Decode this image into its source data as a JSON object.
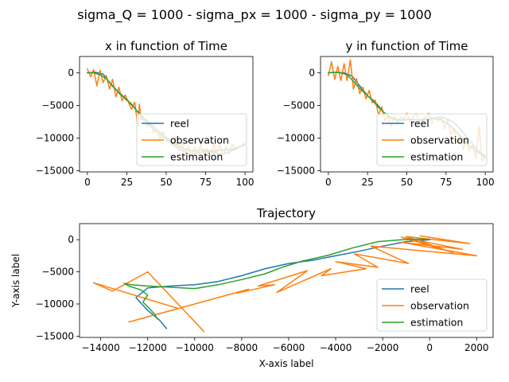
{
  "figure": {
    "suptitle": "sigma_Q = 1000 - sigma_px = 1000 - sigma_py = 1000"
  },
  "colors": {
    "reel": "#1f77b4",
    "observation": "#ff7f0e",
    "estimation": "#2ca02c"
  },
  "chart_data": [
    {
      "type": "line",
      "title": "x in function of Time",
      "xlabel": "",
      "ylabel": "",
      "xlim": [
        -5,
        105
      ],
      "ylim": [
        -15200,
        2500
      ],
      "xticks": [
        0,
        25,
        50,
        75,
        100
      ],
      "xtick_labels": [
        "0",
        "25",
        "50",
        "75",
        "100"
      ],
      "yticks": [
        0,
        -5000,
        -10000,
        -15000
      ],
      "ytick_labels": [
        "0",
        "−5000",
        "−10000",
        "−15000"
      ],
      "grid": false,
      "legend": "lower-right",
      "series": [
        {
          "name": "reel",
          "x": [
            0,
            5,
            10,
            15,
            20,
            25,
            30,
            35,
            40,
            45,
            50,
            55,
            60,
            65,
            70,
            75,
            80,
            85,
            90,
            95,
            100
          ],
          "values": [
            0,
            100,
            -200,
            -1800,
            -3100,
            -4200,
            -5400,
            -7000,
            -8200,
            -9300,
            -10200,
            -11200,
            -11900,
            -12500,
            -12300,
            -12000,
            -12200,
            -12500,
            -12100,
            -11600,
            -11000
          ]
        },
        {
          "name": "observation",
          "x": [
            0,
            2,
            4,
            6,
            8,
            10,
            12,
            14,
            16,
            18,
            20,
            22,
            24,
            26,
            28,
            30,
            32,
            33,
            34,
            36,
            38,
            40,
            42,
            44,
            46,
            48,
            50,
            52,
            54,
            56,
            58,
            60,
            62,
            64,
            66,
            68,
            70,
            72,
            74,
            76,
            78,
            80,
            82,
            84,
            86,
            88,
            90,
            92,
            94,
            96,
            98,
            100
          ],
          "values": [
            600,
            -600,
            500,
            -2000,
            400,
            -1500,
            -400,
            -2500,
            -1000,
            -3700,
            -2200,
            -4300,
            -3400,
            -4500,
            -5600,
            -4500,
            -8200,
            -4800,
            -7200,
            -7000,
            -8300,
            -7700,
            -9200,
            -8800,
            -10200,
            -9000,
            -10500,
            -10000,
            -11200,
            -9800,
            -12000,
            -10700,
            -12600,
            -11200,
            -12800,
            -11400,
            -12300,
            -11000,
            -12600,
            -11600,
            -12800,
            -10900,
            -12300,
            -11100,
            -12700,
            -11300,
            -12400,
            -10900,
            -11800,
            -11300,
            -11200,
            -10700
          ]
        },
        {
          "name": "estimation",
          "x": [
            0,
            4,
            8,
            12,
            16,
            20,
            24,
            28,
            32,
            36,
            40,
            44,
            48,
            52,
            56,
            60,
            64,
            68,
            72,
            76,
            80,
            84,
            88,
            92,
            96,
            100
          ],
          "values": [
            0,
            0,
            -300,
            -900,
            -2000,
            -3000,
            -3900,
            -4800,
            -6000,
            -7000,
            -7800,
            -8700,
            -9500,
            -10300,
            -11000,
            -11500,
            -11900,
            -12000,
            -11800,
            -11900,
            -12000,
            -11900,
            -11800,
            -11700,
            -11400,
            -11000
          ]
        }
      ]
    },
    {
      "type": "line",
      "title": "y in function of Time",
      "xlabel": "",
      "ylabel": "",
      "xlim": [
        -5,
        105
      ],
      "ylim": [
        -15200,
        2500
      ],
      "xticks": [
        0,
        25,
        50,
        75,
        100
      ],
      "xtick_labels": [
        "0",
        "25",
        "50",
        "75",
        "100"
      ],
      "yticks": [
        0,
        -5000,
        -10000,
        -15000
      ],
      "ytick_labels": [
        "0",
        "−5000",
        "−10000",
        "−15000"
      ],
      "grid": false,
      "legend": "lower-right",
      "series": [
        {
          "name": "reel",
          "x": [
            0,
            5,
            10,
            15,
            20,
            25,
            30,
            35,
            40,
            45,
            50,
            55,
            60,
            65,
            70,
            75,
            80,
            85,
            90,
            95,
            100
          ],
          "values": [
            0,
            100,
            0,
            -500,
            -2000,
            -3500,
            -4500,
            -6000,
            -7000,
            -7300,
            -7200,
            -7200,
            -7300,
            -7100,
            -6800,
            -7000,
            -7600,
            -8900,
            -10400,
            -11800,
            -12800
          ]
        },
        {
          "name": "observation",
          "x": [
            0,
            2,
            4,
            6,
            8,
            10,
            12,
            14,
            16,
            18,
            20,
            22,
            24,
            26,
            28,
            30,
            32,
            34,
            36,
            38,
            40,
            42,
            44,
            46,
            48,
            50,
            52,
            54,
            56,
            58,
            60,
            62,
            64,
            66,
            68,
            70,
            72,
            74,
            76,
            78,
            80,
            82,
            84,
            86,
            88,
            90,
            92,
            94,
            96,
            98,
            100
          ],
          "values": [
            -400,
            1700,
            -1000,
            1000,
            -1200,
            1400,
            -1200,
            2000,
            -2500,
            -900,
            -3200,
            -2200,
            -4000,
            -2700,
            -4600,
            -4200,
            -6500,
            -5200,
            -7300,
            -6600,
            -8200,
            -6600,
            -7700,
            -6700,
            -7200,
            -6200,
            -7600,
            -6700,
            -6300,
            -7300,
            -7100,
            -6800,
            -6200,
            -7800,
            -6900,
            -7400,
            -6700,
            -8600,
            -7100,
            -9500,
            -8500,
            -10800,
            -9600,
            -11700,
            -10400,
            -12000,
            -11000,
            -13100,
            -8200,
            -13500,
            -12700
          ]
        },
        {
          "name": "estimation",
          "x": [
            0,
            4,
            8,
            12,
            16,
            20,
            24,
            28,
            32,
            36,
            40,
            44,
            48,
            52,
            56,
            60,
            64,
            68,
            72,
            76,
            80,
            84,
            88,
            92,
            96,
            100
          ],
          "values": [
            0,
            100,
            0,
            -300,
            -1300,
            -2400,
            -3300,
            -4200,
            -5300,
            -6200,
            -6900,
            -7200,
            -7200,
            -7100,
            -7200,
            -7200,
            -7000,
            -7000,
            -7200,
            -7800,
            -8600,
            -9700,
            -10800,
            -11600,
            -12300,
            -13000
          ]
        }
      ]
    },
    {
      "type": "line",
      "title": "Trajectory",
      "xlabel": "X-axis label",
      "ylabel": "Y-axis label",
      "xlim": [
        -14900,
        2700
      ],
      "ylim": [
        -15200,
        2500
      ],
      "xticks": [
        -14000,
        -12000,
        -10000,
        -8000,
        -6000,
        -4000,
        -2000,
        0,
        2000
      ],
      "xtick_labels": [
        "−14000",
        "−12000",
        "−10000",
        "−8000",
        "−6000",
        "−4000",
        "−2000",
        "0",
        "2000"
      ],
      "yticks": [
        0,
        -5000,
        -10000,
        -15000
      ],
      "ytick_labels": [
        "0",
        "−5000",
        "−10000",
        "−15000"
      ],
      "grid": false,
      "legend": "lower-right",
      "series": [
        {
          "name": "reel",
          "x": [
            0,
            -1000,
            -2000,
            -3000,
            -4000,
            -5000,
            -6000,
            -7000,
            -8000,
            -9000,
            -10000,
            -11000,
            -12000,
            -12500,
            -12000,
            -11500,
            -11200
          ],
          "values": [
            0,
            -300,
            -1000,
            -1800,
            -2500,
            -3200,
            -3700,
            -4500,
            -5600,
            -6500,
            -7000,
            -7200,
            -7500,
            -9000,
            -11000,
            -12500,
            -13800
          ]
        },
        {
          "name": "observation",
          "x": [
            -400,
            1700,
            -1000,
            1000,
            -1200,
            1400,
            -1200,
            2000,
            -2500,
            -900,
            -3200,
            -2200,
            -4000,
            -2700,
            -4600,
            -4200,
            -6500,
            -5200,
            -7300,
            -6600,
            -8200,
            -7700,
            -9200,
            -8800,
            -10200,
            -9000,
            -10500,
            -10000,
            -11200,
            -9800,
            -12000,
            -10700,
            -12600,
            -11200,
            -12800,
            -11400,
            -12300,
            -11000,
            -12600,
            -11600,
            -12800,
            -10900,
            -12300,
            -11100,
            -12700,
            -11300,
            -12400,
            -10900,
            -11800,
            -11300,
            -11200,
            -10700,
            -14300,
            -13500,
            -12000,
            -9600
          ],
          "values": [
            600,
            -600,
            500,
            -2000,
            400,
            -1500,
            -400,
            -2500,
            -1000,
            -3700,
            -2200,
            -4300,
            -3400,
            -4500,
            -5600,
            -4500,
            -8200,
            -4800,
            -7200,
            -7000,
            -8300,
            -7700,
            -9200,
            -8800,
            -10200,
            -9000,
            -10500,
            -10000,
            -11200,
            -9800,
            -12000,
            -10700,
            -12600,
            -11200,
            -12800,
            -11400,
            -12300,
            -11000,
            -12600,
            -11600,
            -12800,
            -10900,
            -12300,
            -11100,
            -12700,
            -11300,
            -12400,
            -10900,
            -11800,
            -11300,
            -11200,
            -10700,
            -6700,
            -8000,
            -5000,
            -14300
          ]
        },
        {
          "name": "estimation",
          "x": [
            0,
            -400,
            -1200,
            -2200,
            -3300,
            -4300,
            -5400,
            -6200,
            -7000,
            -8000,
            -9000,
            -10000,
            -11000,
            -12000,
            -12700,
            -13000,
            -12800,
            -12300,
            -12000,
            -12200,
            -11900,
            -11700,
            -11600
          ],
          "values": [
            0,
            100,
            0,
            -300,
            -1300,
            -2400,
            -3300,
            -4200,
            -5300,
            -6200,
            -7000,
            -7600,
            -7400,
            -7200,
            -7000,
            -6800,
            -7200,
            -7800,
            -8600,
            -9700,
            -10800,
            -11600,
            -12300
          ]
        }
      ]
    }
  ]
}
